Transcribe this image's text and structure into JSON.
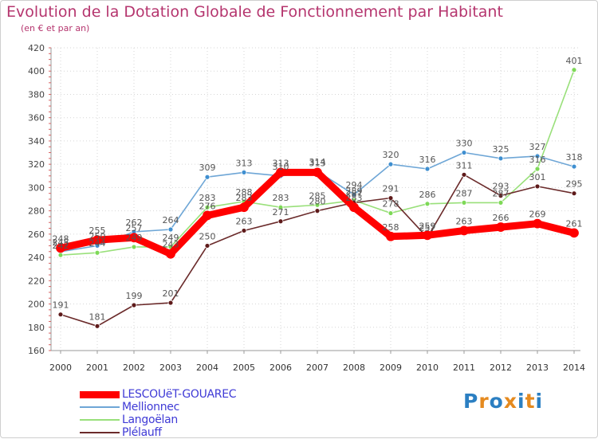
{
  "header": {
    "title": "Evolution de la Dotation Globale de Fonctionnement par Habitant",
    "subtitle": "(en € et par an)"
  },
  "brand": {
    "text": "Proxiti",
    "colors": [
      "#2b7fc2",
      "#e58a1f",
      "#2b7fc2",
      "#e58a1f",
      "#2b7fc2",
      "#e58a1f",
      "#2b7fc2"
    ]
  },
  "chart_data": {
    "type": "line",
    "title": "Evolution de la Dotation Globale de Fonctionnement par Habitant",
    "subtitle": "(en € et par an)",
    "xlabel": "",
    "ylabel": "",
    "ylim": [
      160,
      420
    ],
    "yticks": [
      160,
      180,
      200,
      220,
      240,
      260,
      280,
      300,
      320,
      340,
      360,
      380,
      400,
      420
    ],
    "categories": [
      "2000",
      "2001",
      "2002",
      "2003",
      "2004",
      "2005",
      "2006",
      "2007",
      "2008",
      "2009",
      "2010",
      "2011",
      "2012",
      "2013",
      "2014"
    ],
    "grid": true,
    "legend_position": "bottom-left",
    "series": [
      {
        "name": "LESCOUëT-GOUAREC",
        "color": "#ff0000",
        "point_color": "#ff0000",
        "emphasis": true,
        "values": [
          248,
          255,
          257,
          243,
          276,
          283,
          313,
          313,
          283,
          258,
          259,
          263,
          266,
          269,
          261
        ]
      },
      {
        "name": "Mellionnec",
        "color": "#6ea6d6",
        "point_color": "#3f8fd0",
        "values": [
          245,
          250,
          262,
          264,
          309,
          313,
          310,
          314,
          294,
          320,
          316,
          330,
          325,
          327,
          318
        ]
      },
      {
        "name": "Langoëlan",
        "color": "#99e07a",
        "point_color": "#7ed957",
        "values": [
          242,
          244,
          249,
          249,
          283,
          288,
          283,
          285,
          289,
          278,
          286,
          287,
          287,
          316,
          401
        ]
      },
      {
        "name": "Plélauff",
        "color": "#6b2b2b",
        "point_color": "#5e1a1a",
        "values": [
          191,
          181,
          199,
          201,
          250,
          263,
          271,
          280,
          287,
          291,
          257,
          311,
          293,
          301,
          295
        ]
      }
    ]
  }
}
